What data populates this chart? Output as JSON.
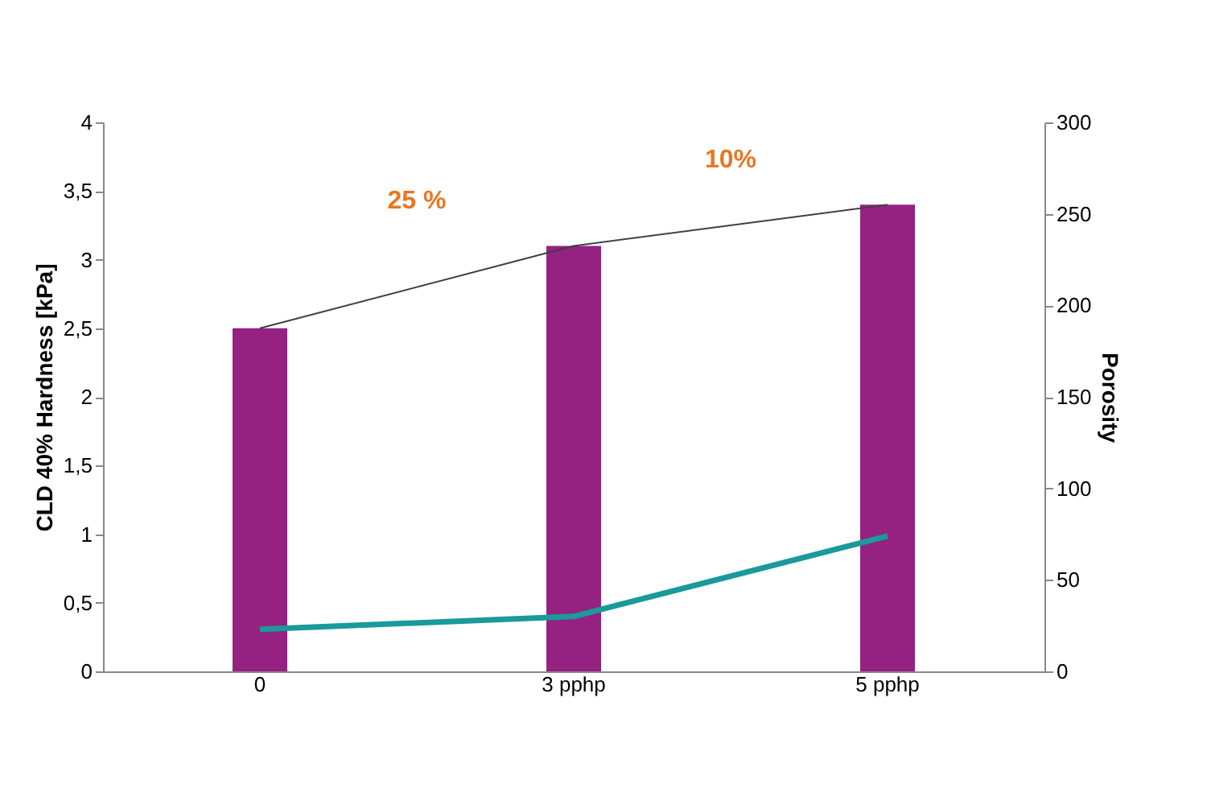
{
  "chart_data": {
    "type": "bar",
    "categories": [
      "0",
      "3 pphp",
      "5 pphp"
    ],
    "ylabel": "CLD 40% Hardness [kPa]",
    "y2label": "Porosity",
    "ylim": [
      0,
      4
    ],
    "yticks": [
      0,
      {
        "value": 0.5,
        "label": "0,5"
      },
      1,
      {
        "value": 1.5,
        "label": "1,5"
      },
      2,
      {
        "value": 2.5,
        "label": "2,5"
      },
      3,
      {
        "value": 3.5,
        "label": "3,5"
      },
      4
    ],
    "y2lim": [
      0,
      300
    ],
    "y2ticks": [
      0,
      50,
      100,
      150,
      200,
      250,
      300
    ],
    "series": [
      {
        "color": "#952181",
        "values": [
          2.5,
          3.1,
          3.4
        ]
      },
      {
        "type": "line",
        "color": "#404040",
        "values": [
          2.5,
          3.1,
          3.4
        ]
      },
      {
        "type": "line",
        "color": "#1a9a9a",
        "axis": "y2",
        "values": [
          23,
          30,
          74
        ]
      }
    ],
    "annotations": [
      "25 %",
      "10%"
    ],
    "grid": false
  }
}
